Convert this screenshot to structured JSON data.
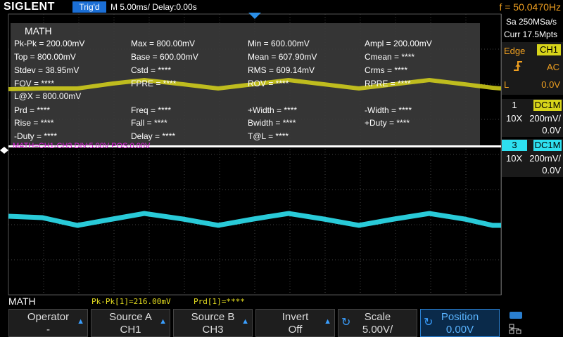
{
  "header": {
    "brand": "SIGLENT",
    "trigger_status": "Trig'd",
    "timebase": "M 5.00ms/ Delay:0.00s",
    "frequency": "f = 50.0470Hz"
  },
  "math_window": {
    "title": "MATH",
    "rows": [
      [
        "Pk-Pk = 200.00mV",
        "Max = 800.00mV",
        "Min = 600.00mV",
        "Ampl = 200.00mV"
      ],
      [
        "Top = 800.00mV",
        "Base = 600.00mV",
        "Mean = 607.90mV",
        "Cmean = ****"
      ],
      [
        "Stdev = 38.95mV",
        "Cstd = ****",
        "RMS = 609.14mV",
        "Crms = ****"
      ],
      [
        "FOV = ****",
        "FPRE = ****",
        "ROV = ****",
        "RPRE = ****"
      ],
      [
        "L@X = 800.00mV"
      ],
      [
        "Prd = ****",
        "Freq = ****",
        "+Width = ****",
        "-Width = ****"
      ],
      [
        "Rise = ****",
        "Fall = ****",
        "Bwidth = ****",
        "+Duty = ****"
      ],
      [
        "-Duty = ****",
        "Delay = ****",
        "T@L = ****"
      ]
    ]
  },
  "math_label": "MATH=CH1-CH3  DIV:5.00V  POS:0.00V",
  "side_panel": {
    "sample_rate": "Sa 250MSa/s",
    "memory": "Curr 17.5Mpts",
    "trigger": {
      "type": "Edge",
      "source": "CH1",
      "coupling": "AC",
      "level_label": "L",
      "level": "0.0V"
    },
    "channels": [
      {
        "number": "1",
        "coupling": "DC1M",
        "probe": "10X",
        "scale": "200mV/",
        "offset": "0.0V"
      },
      {
        "number": "3",
        "coupling": "DC1M",
        "probe": "10X",
        "scale": "200mV/",
        "offset": "0.0V"
      }
    ]
  },
  "status_bar": {
    "menu": "MATH",
    "measure_1": "Pk-Pk[1]=216.00mV",
    "measure_2": "Prd[1]=****"
  },
  "softkeys": [
    {
      "label": "Operator",
      "value": "-"
    },
    {
      "label": "Source A",
      "value": "CH1"
    },
    {
      "label": "Source B",
      "value": "CH3"
    },
    {
      "label": "Invert",
      "value": "Off"
    },
    {
      "label": "Scale",
      "value": "5.00V/"
    },
    {
      "label": "Position",
      "value": "0.00V"
    }
  ]
}
